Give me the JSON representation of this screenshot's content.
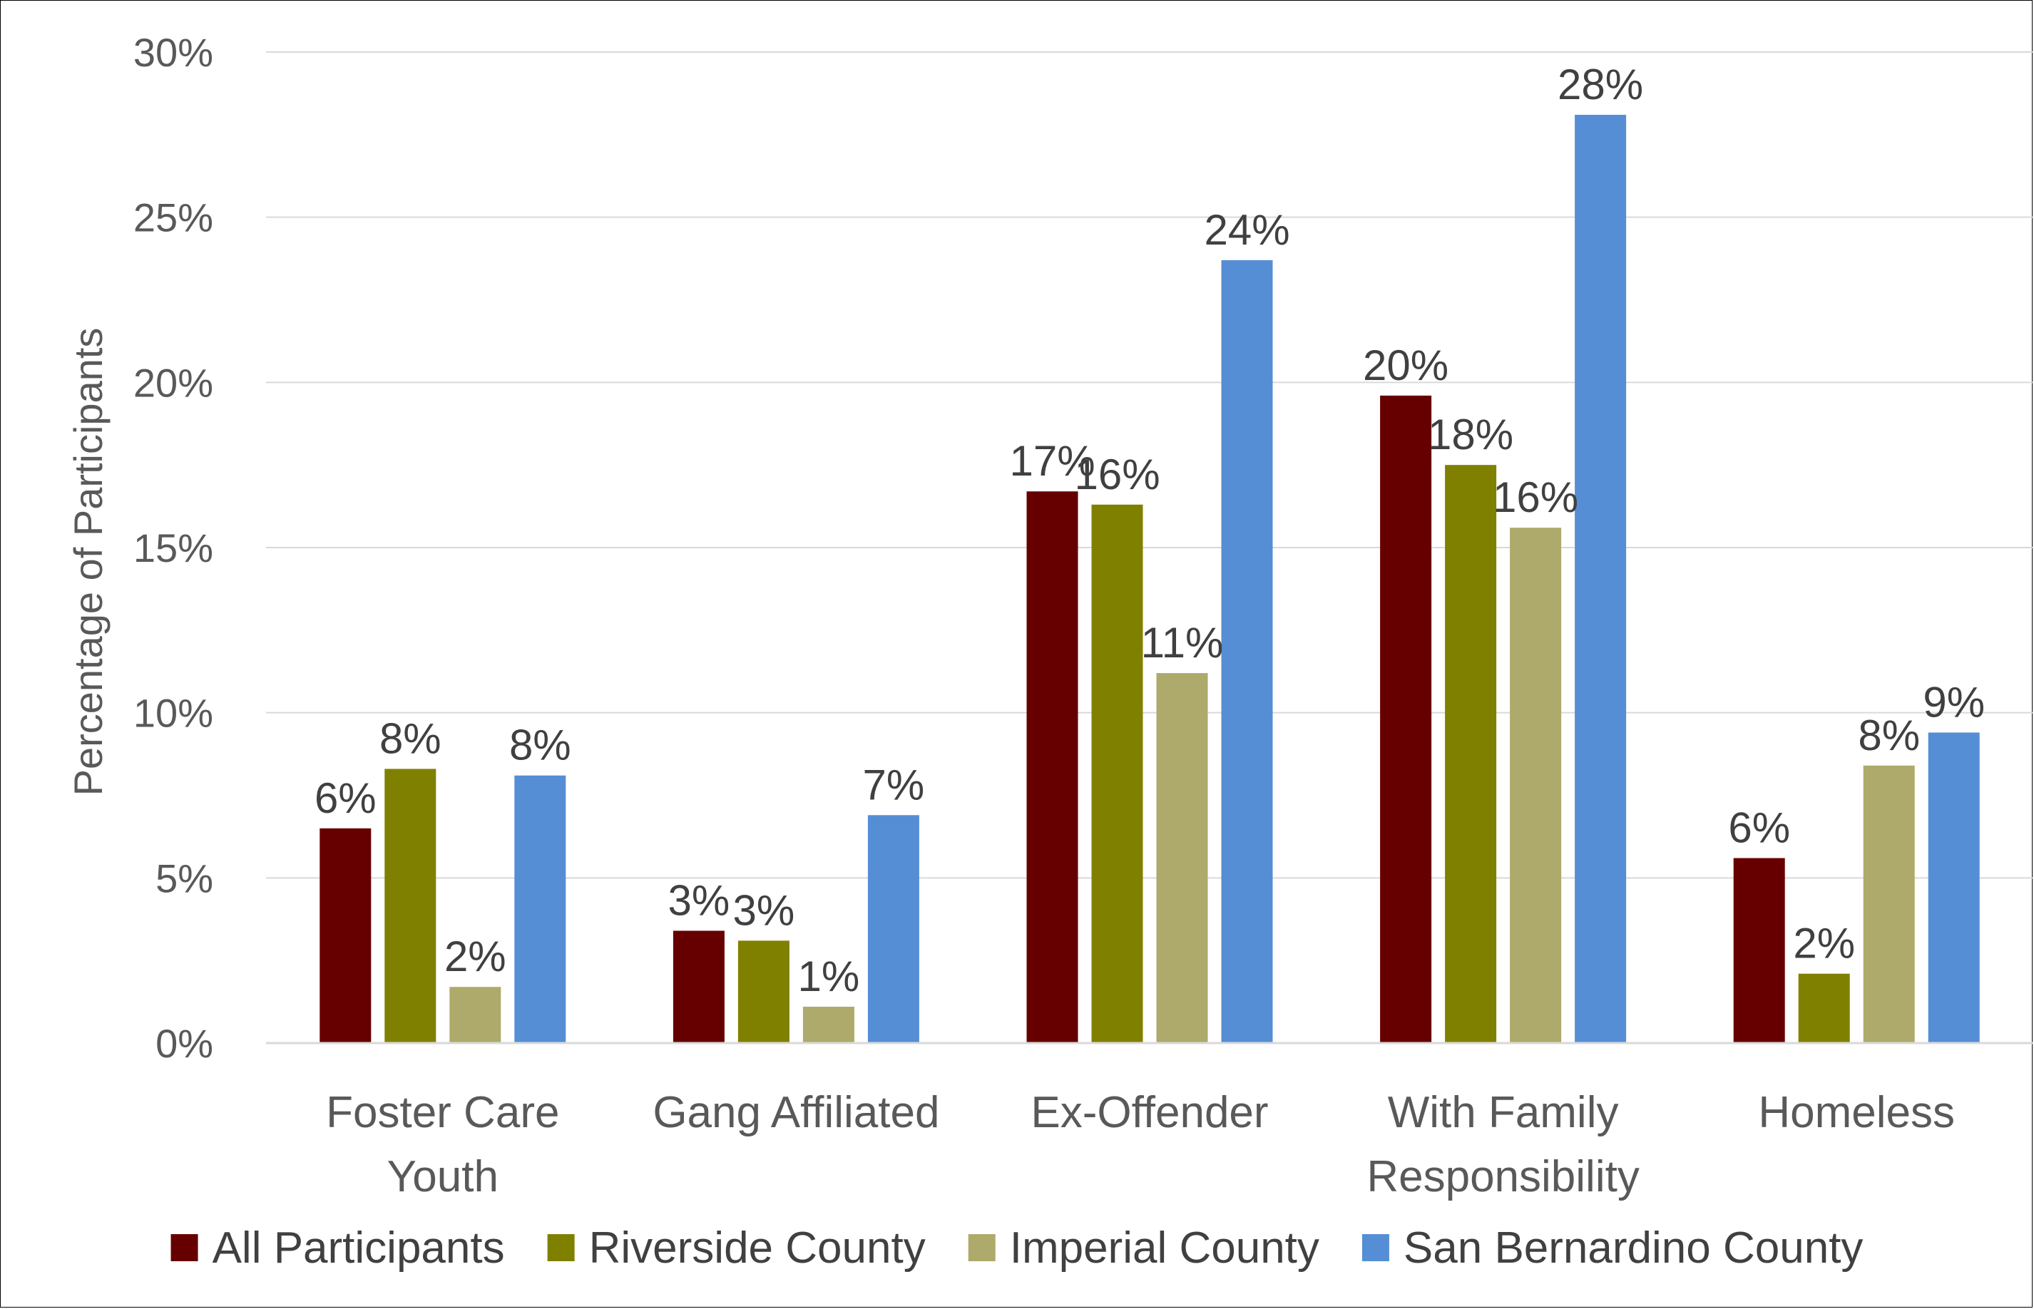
{
  "chart_data": {
    "type": "bar",
    "title": "",
    "xlabel": "",
    "ylabel": "Percentage of Participants",
    "ylim": [
      0,
      30
    ],
    "yticks": [
      "0%",
      "5%",
      "10%",
      "15%",
      "20%",
      "25%",
      "30%"
    ],
    "grid": true,
    "legend_position": "bottom",
    "categories": [
      [
        "Foster Care",
        "Youth"
      ],
      [
        "Gang Affiliated"
      ],
      [
        "Ex-Offender"
      ],
      [
        "With Family",
        "Responsibility"
      ],
      [
        "Homeless"
      ]
    ],
    "series": [
      {
        "name": "All Participants",
        "color": "#660000",
        "values": [
          6.5,
          3.4,
          16.7,
          19.6,
          5.6
        ],
        "labels": [
          "6%",
          "3%",
          "17%",
          "20%",
          "6%"
        ]
      },
      {
        "name": "Riverside County",
        "color": "#808000",
        "values": [
          8.3,
          3.1,
          16.3,
          17.5,
          2.1
        ],
        "labels": [
          "8%",
          "3%",
          "16%",
          "18%",
          "2%"
        ]
      },
      {
        "name": "Imperial County",
        "color": "#ADAA6B",
        "values": [
          1.7,
          1.1,
          11.2,
          15.6,
          8.4
        ],
        "labels": [
          "2%",
          "1%",
          "11%",
          "16%",
          "8%"
        ]
      },
      {
        "name": "San Bernardino County",
        "color": "#558ED5",
        "values": [
          8.1,
          6.9,
          23.7,
          28.1,
          9.4
        ],
        "labels": [
          "8%",
          "7%",
          "24%",
          "28%",
          "9%"
        ]
      }
    ]
  }
}
